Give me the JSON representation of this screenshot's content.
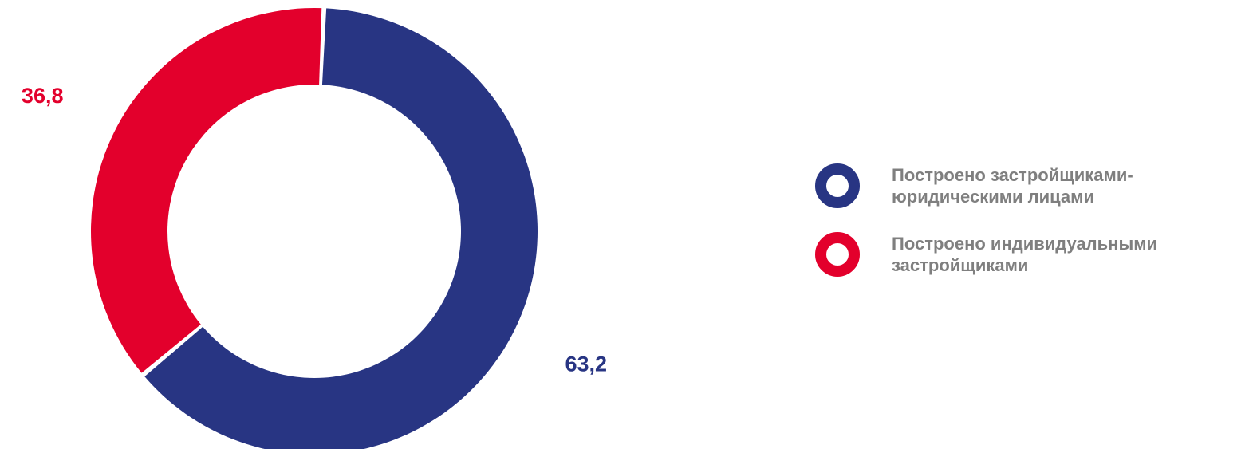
{
  "chart_data": {
    "type": "pie",
    "donut": true,
    "title": "",
    "series": [
      {
        "name": "Построено застройщиками-юридическими лицами",
        "value": 63.2,
        "label": "63,2",
        "color": "#283583"
      },
      {
        "name": "Построено индивидуальными застройщиками",
        "value": 36.8,
        "label": "36,8",
        "color": "#e3002c"
      }
    ],
    "legend_position": "right"
  }
}
